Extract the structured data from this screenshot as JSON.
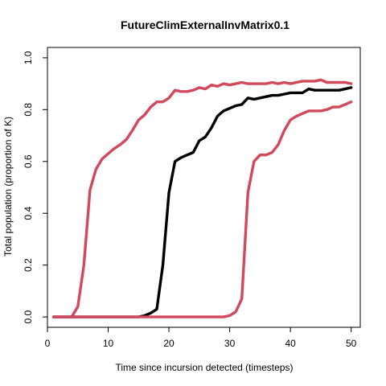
{
  "chart_data": {
    "type": "line",
    "title": "FutureClimExternalInvMatrix0.1",
    "xlabel": "Time since incursion detected (timesteps)",
    "ylabel": "Total population (proportion of K)",
    "xlim": [
      0,
      51.5
    ],
    "ylim": [
      -0.04,
      1.04
    ],
    "x_ticks": [
      0,
      10,
      20,
      30,
      40,
      50
    ],
    "y_ticks": [
      0.0,
      0.2,
      0.4,
      0.6,
      0.8,
      1.0
    ],
    "x_tick_labels": [
      "0",
      "10",
      "20",
      "30",
      "40",
      "50"
    ],
    "y_tick_labels": [
      "0.0",
      "0.2",
      "0.4",
      "0.6",
      "0.8",
      "1.0"
    ],
    "grid": false,
    "legend": "none",
    "series": [
      {
        "color": "#d1495b",
        "points": [
          [
            1,
            0
          ],
          [
            2,
            0
          ],
          [
            3,
            0
          ],
          [
            4,
            0
          ],
          [
            5,
            0.04
          ],
          [
            6,
            0.2
          ],
          [
            7,
            0.49
          ],
          [
            8,
            0.57
          ],
          [
            9,
            0.61
          ],
          [
            10,
            0.63
          ],
          [
            11,
            0.65
          ],
          [
            12,
            0.665
          ],
          [
            13,
            0.685
          ],
          [
            14,
            0.72
          ],
          [
            15,
            0.76
          ],
          [
            16,
            0.78
          ],
          [
            17,
            0.81
          ],
          [
            18,
            0.83
          ],
          [
            19,
            0.83
          ],
          [
            20,
            0.845
          ],
          [
            21,
            0.875
          ],
          [
            22,
            0.87
          ],
          [
            23,
            0.87
          ],
          [
            24,
            0.875
          ],
          [
            25,
            0.885
          ],
          [
            26,
            0.88
          ],
          [
            27,
            0.895
          ],
          [
            28,
            0.89
          ],
          [
            29,
            0.9
          ],
          [
            30,
            0.895
          ],
          [
            31,
            0.9
          ],
          [
            32,
            0.905
          ],
          [
            33,
            0.9
          ],
          [
            34,
            0.9
          ],
          [
            35,
            0.9
          ],
          [
            36,
            0.9
          ],
          [
            37,
            0.905
          ],
          [
            38,
            0.9
          ],
          [
            39,
            0.905
          ],
          [
            40,
            0.9
          ],
          [
            41,
            0.905
          ],
          [
            42,
            0.91
          ],
          [
            43,
            0.91
          ],
          [
            44,
            0.91
          ],
          [
            45,
            0.915
          ],
          [
            46,
            0.905
          ],
          [
            47,
            0.905
          ],
          [
            48,
            0.905
          ],
          [
            49,
            0.905
          ],
          [
            50,
            0.9
          ]
        ]
      },
      {
        "color": "#000000",
        "points": [
          [
            1,
            0
          ],
          [
            5,
            0
          ],
          [
            10,
            0
          ],
          [
            15,
            0
          ],
          [
            16,
            0.005
          ],
          [
            17,
            0.015
          ],
          [
            18,
            0.03
          ],
          [
            19,
            0.2
          ],
          [
            20,
            0.48
          ],
          [
            21,
            0.6
          ],
          [
            22,
            0.615
          ],
          [
            23,
            0.625
          ],
          [
            24,
            0.635
          ],
          [
            25,
            0.68
          ],
          [
            26,
            0.695
          ],
          [
            27,
            0.73
          ],
          [
            28,
            0.775
          ],
          [
            29,
            0.795
          ],
          [
            30,
            0.805
          ],
          [
            31,
            0.815
          ],
          [
            32,
            0.82
          ],
          [
            33,
            0.845
          ],
          [
            34,
            0.84
          ],
          [
            35,
            0.845
          ],
          [
            36,
            0.85
          ],
          [
            37,
            0.855
          ],
          [
            38,
            0.855
          ],
          [
            39,
            0.86
          ],
          [
            40,
            0.865
          ],
          [
            41,
            0.865
          ],
          [
            42,
            0.865
          ],
          [
            43,
            0.88
          ],
          [
            44,
            0.875
          ],
          [
            45,
            0.875
          ],
          [
            46,
            0.875
          ],
          [
            47,
            0.875
          ],
          [
            48,
            0.875
          ],
          [
            49,
            0.88
          ],
          [
            50,
            0.885
          ]
        ]
      },
      {
        "color": "#d1495b",
        "points": [
          [
            1,
            0
          ],
          [
            5,
            0
          ],
          [
            10,
            0
          ],
          [
            15,
            0
          ],
          [
            20,
            0
          ],
          [
            25,
            0
          ],
          [
            29,
            0
          ],
          [
            30,
            0.005
          ],
          [
            31,
            0.02
          ],
          [
            32,
            0.07
          ],
          [
            33,
            0.48
          ],
          [
            34,
            0.6
          ],
          [
            35,
            0.625
          ],
          [
            36,
            0.625
          ],
          [
            37,
            0.635
          ],
          [
            38,
            0.665
          ],
          [
            39,
            0.72
          ],
          [
            40,
            0.76
          ],
          [
            41,
            0.775
          ],
          [
            42,
            0.785
          ],
          [
            43,
            0.795
          ],
          [
            44,
            0.795
          ],
          [
            45,
            0.795
          ],
          [
            46,
            0.8
          ],
          [
            47,
            0.81
          ],
          [
            48,
            0.81
          ],
          [
            49,
            0.82
          ],
          [
            50,
            0.83
          ]
        ]
      }
    ]
  }
}
